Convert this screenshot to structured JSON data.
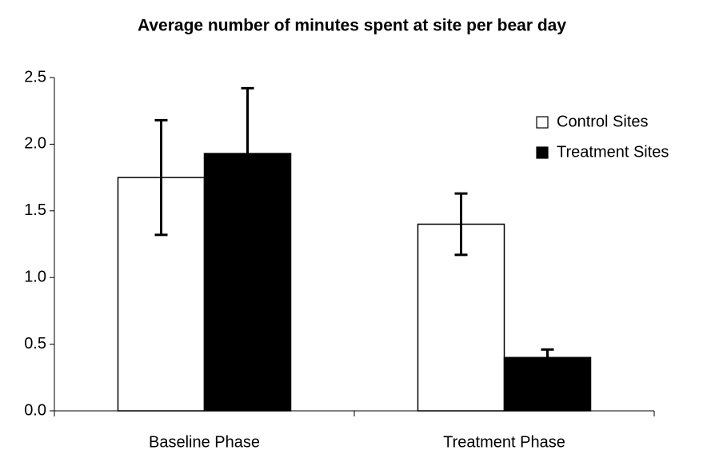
{
  "chart_data": {
    "type": "bar",
    "title": "Average number of minutes spent at site per bear day",
    "categories": [
      "Baseline Phase",
      "Treatment Phase"
    ],
    "series": [
      {
        "name": "Control Sites",
        "color": "#ffffff",
        "values": [
          1.75,
          1.4
        ],
        "errors": [
          0.43,
          0.23
        ]
      },
      {
        "name": "Treatment Sites",
        "color": "#000000",
        "values": [
          1.93,
          0.4
        ],
        "errors": [
          0.49,
          0.06
        ]
      }
    ],
    "ylim": [
      0,
      2.5
    ],
    "yticks": [
      {
        "value": 0,
        "label": "0.0"
      },
      0.5,
      {
        "value": 1,
        "label": "1.0"
      },
      1.5,
      {
        "value": 2,
        "label": "2.0"
      },
      2.5
    ],
    "grid": false,
    "legend": "upper right"
  }
}
